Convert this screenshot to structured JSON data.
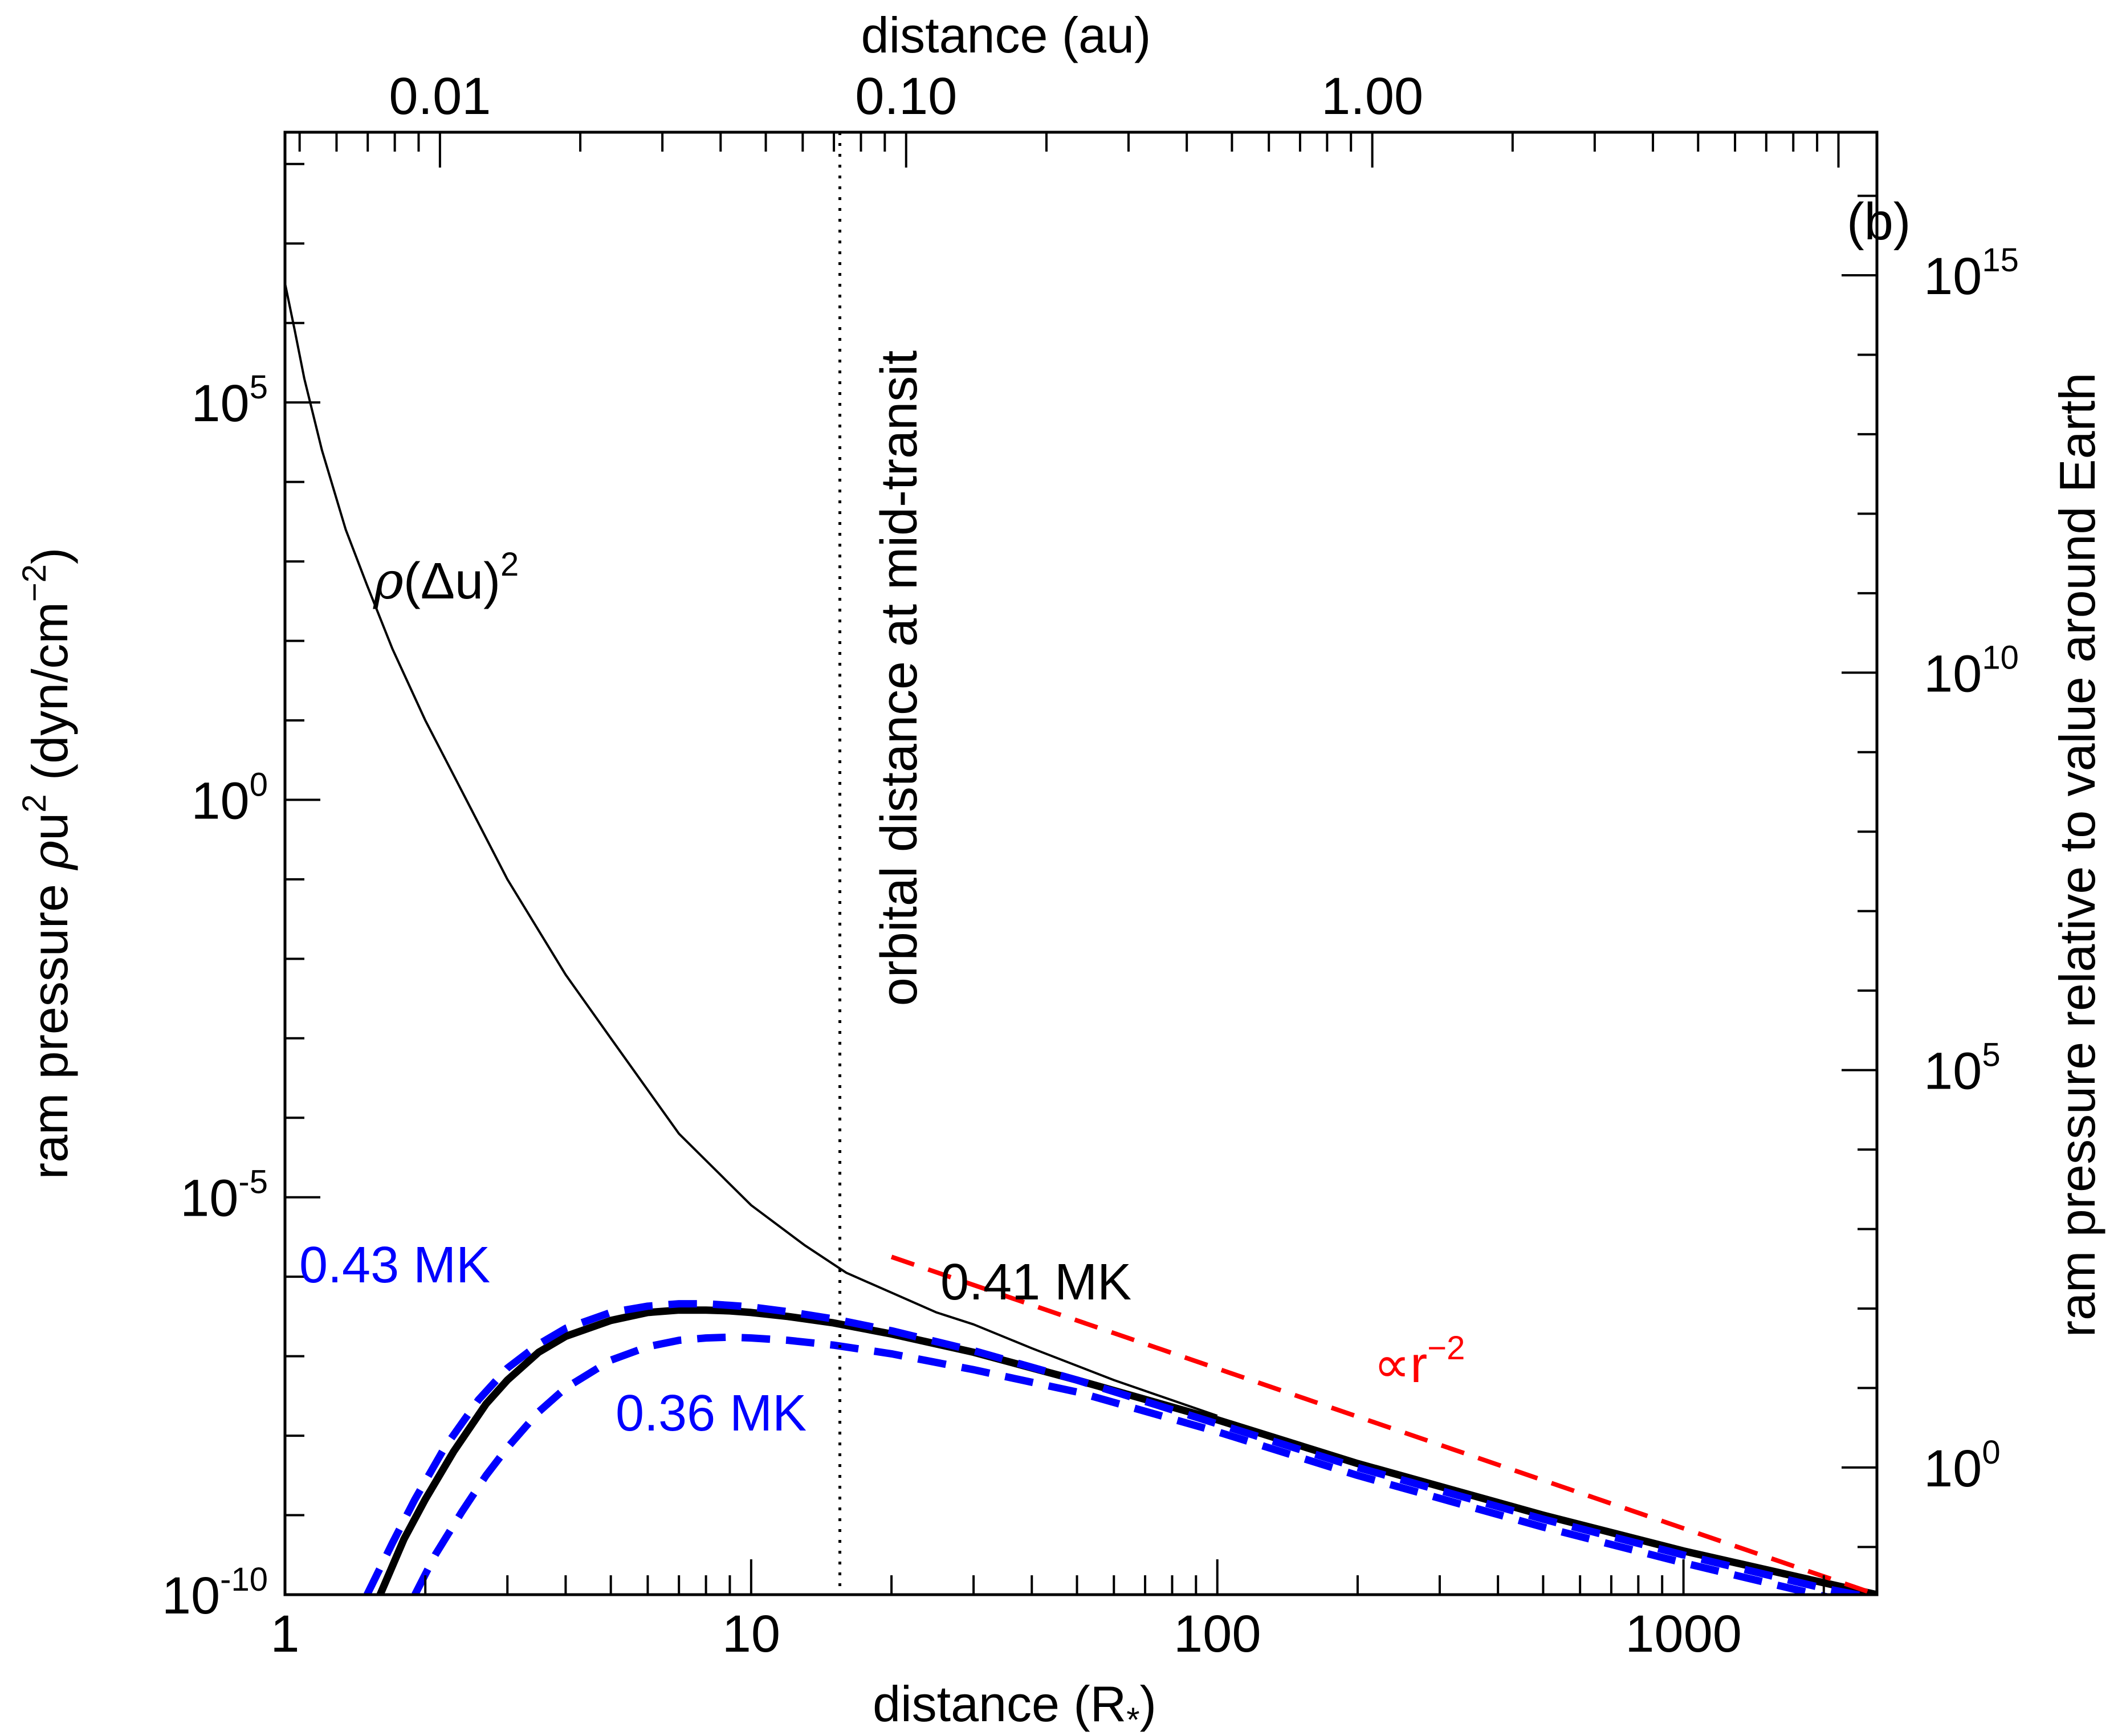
{
  "chart_data": {
    "type": "line",
    "panel_label": "(b)",
    "x_axis": {
      "label_main": "distance (R",
      "label_sub": "*",
      "label_end": ")",
      "scale": "log",
      "range": [
        1,
        2600
      ],
      "ticks": [
        {
          "value": 1,
          "label": "1"
        },
        {
          "value": 10,
          "label": "10"
        },
        {
          "value": 100,
          "label": "100"
        },
        {
          "value": 1000,
          "label": "1000"
        }
      ]
    },
    "x2_axis": {
      "label": "distance (au)",
      "scale": "log",
      "rsun_per_au": 215.0,
      "ticks": [
        {
          "value": 0.01,
          "label": "0.01"
        },
        {
          "value": 0.1,
          "label": "0.10"
        },
        {
          "value": 1,
          "label": "1.00"
        }
      ]
    },
    "y_axis": {
      "label_pre": "ram pressure ",
      "label_rho": "ρ",
      "label_u": "u",
      "label_sup": "2",
      "label_units": " (dyn/cm",
      "label_units_sup": "−2",
      "label_close": ")",
      "scale": "log",
      "range_log10": [
        -10,
        8.4
      ],
      "ticks": [
        {
          "log10": 5,
          "base": "10",
          "exp": "5"
        },
        {
          "log10": 0,
          "base": "10",
          "exp": "0"
        },
        {
          "log10": -5,
          "base": "10",
          "exp": "-5"
        },
        {
          "log10": -10,
          "base": "10",
          "exp": "-10"
        }
      ]
    },
    "y2_axis": {
      "label": "ram pressure relative to value around Earth",
      "offset_log10": -8.4,
      "ticks": [
        {
          "log10": 15,
          "base": "10",
          "exp": "15"
        },
        {
          "log10": 10,
          "base": "10",
          "exp": "10"
        },
        {
          "log10": 5,
          "base": "10",
          "exp": "5"
        },
        {
          "log10": 0,
          "base": "10",
          "exp": "0"
        }
      ]
    },
    "vline": {
      "x": 15.5,
      "label": "orbital distance at mid-transit"
    },
    "series": [
      {
        "name": "ρ(Δu)²",
        "label_rho": "ρ",
        "label_mid": "(Δu)",
        "label_sup": "2",
        "color": "#000000",
        "style": "thin",
        "x": [
          1,
          1.05,
          1.1,
          1.2,
          1.35,
          1.5,
          1.7,
          2,
          2.5,
          3,
          4,
          5,
          7,
          10,
          13,
          16,
          20,
          25,
          30,
          40,
          60,
          100
        ],
        "log10y": [
          6.5,
          5.9,
          5.3,
          4.4,
          3.4,
          2.7,
          1.9,
          1.0,
          -0.1,
          -1.0,
          -2.2,
          -3.0,
          -4.2,
          -5.1,
          -5.6,
          -5.95,
          -6.2,
          -6.45,
          -6.6,
          -6.9,
          -7.3,
          -7.75
        ]
      },
      {
        "name": "0.41 MK",
        "color": "#000000",
        "style": "thick",
        "x": [
          1.6,
          1.8,
          2,
          2.3,
          2.7,
          3,
          3.5,
          4,
          5,
          6,
          7,
          8,
          9,
          10,
          12,
          15,
          20,
          30,
          50,
          100,
          200,
          500,
          1000,
          2000,
          2600
        ],
        "log10y": [
          -10,
          -9.3,
          -8.8,
          -8.2,
          -7.6,
          -7.3,
          -6.95,
          -6.75,
          -6.55,
          -6.45,
          -6.42,
          -6.42,
          -6.43,
          -6.45,
          -6.5,
          -6.58,
          -6.72,
          -6.95,
          -7.3,
          -7.8,
          -8.35,
          -9.0,
          -9.45,
          -9.85,
          -10
        ]
      },
      {
        "name": "0.43 MK",
        "color": "#0000ff",
        "style": "dashed",
        "x": [
          1.5,
          1.7,
          1.9,
          2.2,
          2.6,
          3,
          3.5,
          4,
          5,
          6,
          7,
          8,
          9,
          10,
          12,
          15,
          20,
          30,
          50,
          100,
          200,
          500,
          1000,
          2000,
          2600
        ],
        "log10y": [
          -10,
          -9.35,
          -8.8,
          -8.15,
          -7.55,
          -7.15,
          -6.85,
          -6.65,
          -6.45,
          -6.37,
          -6.34,
          -6.34,
          -6.36,
          -6.38,
          -6.44,
          -6.53,
          -6.68,
          -6.93,
          -7.3,
          -7.85,
          -8.4,
          -9.05,
          -9.5,
          -9.92,
          -10.05
        ]
      },
      {
        "name": "0.36 MK",
        "color": "#0000ff",
        "style": "dashed",
        "x": [
          1.9,
          2.1,
          2.4,
          2.7,
          3,
          3.5,
          4,
          5,
          6,
          7,
          8,
          9,
          10,
          12,
          15,
          20,
          30,
          50,
          100,
          200,
          500,
          1000,
          2000,
          2600
        ],
        "log10y": [
          -10,
          -9.5,
          -8.95,
          -8.5,
          -8.15,
          -7.7,
          -7.4,
          -7.05,
          -6.88,
          -6.8,
          -6.77,
          -6.76,
          -6.77,
          -6.8,
          -6.86,
          -6.97,
          -7.17,
          -7.45,
          -7.95,
          -8.5,
          -9.15,
          -9.6,
          -10.02,
          -10.15
        ]
      },
      {
        "name": "∝r⁻²",
        "label_main": "∝r",
        "label_sup": "−2",
        "color": "#ff0000",
        "style": "dashed",
        "x": [
          20,
          2600
        ],
        "log10y": [
          -5.75,
          -10.0
        ]
      }
    ],
    "annotations": [
      {
        "text": "0.43 MK",
        "color": "#0000ff"
      },
      {
        "text": "0.41 MK",
        "color": "#000000"
      },
      {
        "text": "0.36 MK",
        "color": "#0000ff"
      }
    ]
  }
}
